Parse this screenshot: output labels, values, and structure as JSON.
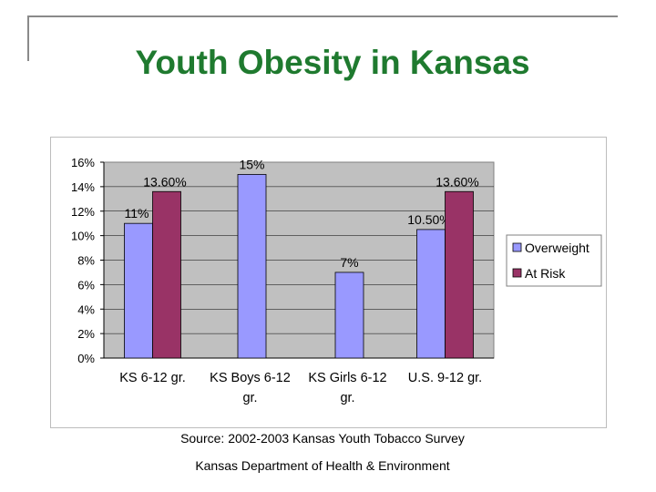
{
  "slide": {
    "title": "Youth Obesity in Kansas",
    "source": "Source: 2002-2003 Kansas Youth Tobacco Survey",
    "department": "Kansas Department of Health & Environment",
    "title_color": "#1f7a2f"
  },
  "chart_data": {
    "type": "bar",
    "categories": [
      [
        "KS 6-12 gr."
      ],
      [
        "KS Boys 6-12",
        "gr."
      ],
      [
        "KS Girls 6-12",
        "gr."
      ],
      [
        "U.S. 9-12 gr."
      ]
    ],
    "series": [
      {
        "name": "Overweight",
        "color": "#9999ff",
        "values": [
          11,
          15,
          7,
          10.5
        ],
        "labels": [
          "11%",
          "15%",
          "7%",
          "10.50%"
        ]
      },
      {
        "name": "At Risk",
        "color": "#993366",
        "values": [
          13.6,
          null,
          null,
          13.6
        ],
        "labels": [
          "13.60%",
          null,
          null,
          "13.60%"
        ]
      }
    ],
    "y_ticks": [
      "0%",
      "2%",
      "4%",
      "6%",
      "8%",
      "10%",
      "12%",
      "14%",
      "16%"
    ],
    "ylim": [
      0,
      16
    ],
    "plot_background": "#c0c0c0",
    "grid": true,
    "legend_position": "right"
  }
}
